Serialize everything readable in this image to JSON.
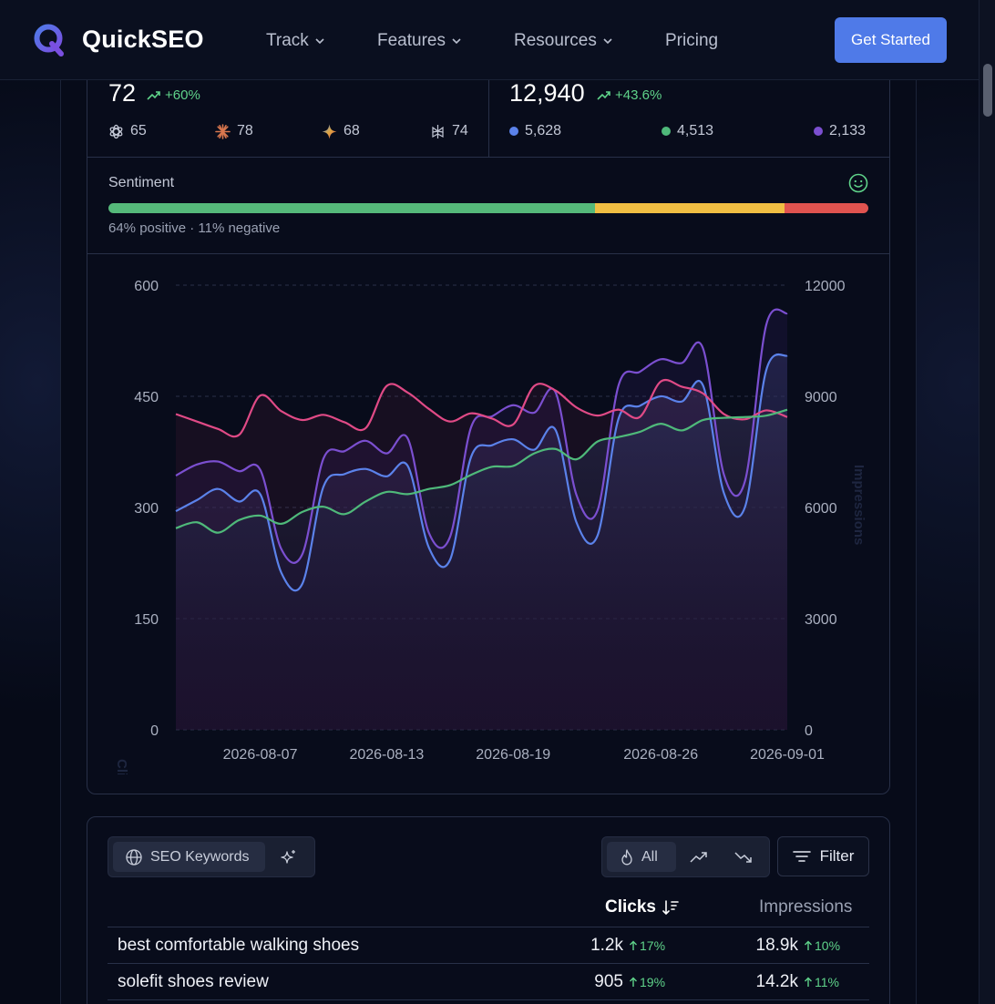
{
  "header": {
    "brand": "QuickSEO",
    "nav": [
      {
        "label": "Track",
        "has_dropdown": true
      },
      {
        "label": "Features",
        "has_dropdown": true
      },
      {
        "label": "Resources",
        "has_dropdown": true
      },
      {
        "label": "Pricing",
        "has_dropdown": false
      }
    ],
    "cta_label": "Get Started",
    "brand_color": "#4f7ae8"
  },
  "metrics": {
    "visibility": {
      "value": "72",
      "delta": "+60%",
      "engines": [
        {
          "icon": "openai-icon",
          "value": "65"
        },
        {
          "icon": "claude-sunburst-icon",
          "value": "78"
        },
        {
          "icon": "gemini-sparkle-icon",
          "value": "68"
        },
        {
          "icon": "perplexity-icon",
          "value": "74"
        }
      ]
    },
    "mentions": {
      "value": "12,940",
      "delta": "+43.6%",
      "breakdown": [
        {
          "color": "#5b82ea",
          "value": "5,628"
        },
        {
          "color": "#4fb97a",
          "value": "4,513"
        },
        {
          "color": "#7b4fd0",
          "value": "2,133"
        }
      ]
    }
  },
  "sentiment": {
    "title": "Sentiment",
    "positive_pct": 64,
    "neutral_pct": 25,
    "negative_pct": 11,
    "caption": "64% positive · 11% negative",
    "colors": {
      "positive": "#55b97a",
      "neutral": "#f0be43",
      "negative": "#e0534f"
    }
  },
  "chart_data": {
    "type": "line",
    "ylabel": "Clicks",
    "y2label": "Impressions",
    "ylim": [
      0,
      600
    ],
    "y2lim": [
      0,
      12000
    ],
    "yticks": [
      0,
      150,
      300,
      450,
      600
    ],
    "y2ticks": [
      0,
      3000,
      6000,
      9000,
      12000
    ],
    "x_tick_labels": [
      "2026-08-07",
      "2026-08-13",
      "2026-08-19",
      "2026-08-26",
      "2026-09-01"
    ],
    "x_start": "2026-08-03",
    "x_end": "2026-09-01",
    "grid": true,
    "series": [
      {
        "color": "#5b82ea",
        "axis": "left",
        "values": [
          295,
          310,
          325,
          308,
          318,
          212,
          197,
          328,
          345,
          352,
          342,
          356,
          246,
          229,
          368,
          384,
          392,
          378,
          405,
          280,
          262,
          420,
          437,
          450,
          443,
          465,
          319,
          301,
          485,
          505
        ]
      },
      {
        "color": "#7b4fd0",
        "axis": "left",
        "values": [
          343,
          358,
          362,
          349,
          351,
          244,
          237,
          366,
          376,
          390,
          373,
          393,
          266,
          260,
          408,
          423,
          438,
          428,
          456,
          317,
          296,
          465,
          483,
          500,
          495,
          515,
          344,
          336,
          546,
          562
        ]
      },
      {
        "color": "#e04a86",
        "axis": "left",
        "values": [
          426,
          416,
          406,
          398,
          451,
          430,
          418,
          425,
          415,
          407,
          464,
          455,
          433,
          416,
          427,
          420,
          412,
          464,
          458,
          435,
          424,
          432,
          422,
          470,
          463,
          454,
          426,
          419,
          431,
          422
        ]
      },
      {
        "color": "#4fb97a",
        "axis": "left",
        "values": [
          272,
          280,
          266,
          283,
          289,
          278,
          294,
          301,
          291,
          308,
          321,
          318,
          325,
          330,
          344,
          355,
          356,
          373,
          379,
          365,
          389,
          395,
          402,
          413,
          404,
          418,
          421,
          422,
          424,
          432
        ]
      }
    ]
  },
  "keywords": {
    "toggle_label": "SEO Keywords",
    "filters": [
      "All"
    ],
    "filter_button": "Filter",
    "columns": {
      "clicks": "Clicks",
      "impressions": "Impressions"
    },
    "rows": [
      {
        "keyword": "best comfortable walking shoes",
        "clicks": "1.2k",
        "clicks_change": "17%",
        "impressions": "18.9k",
        "impressions_change": "10%"
      },
      {
        "keyword": "solefit shoes review",
        "clicks": "905",
        "clicks_change": "19%",
        "impressions": "14.2k",
        "impressions_change": "11%"
      }
    ]
  }
}
